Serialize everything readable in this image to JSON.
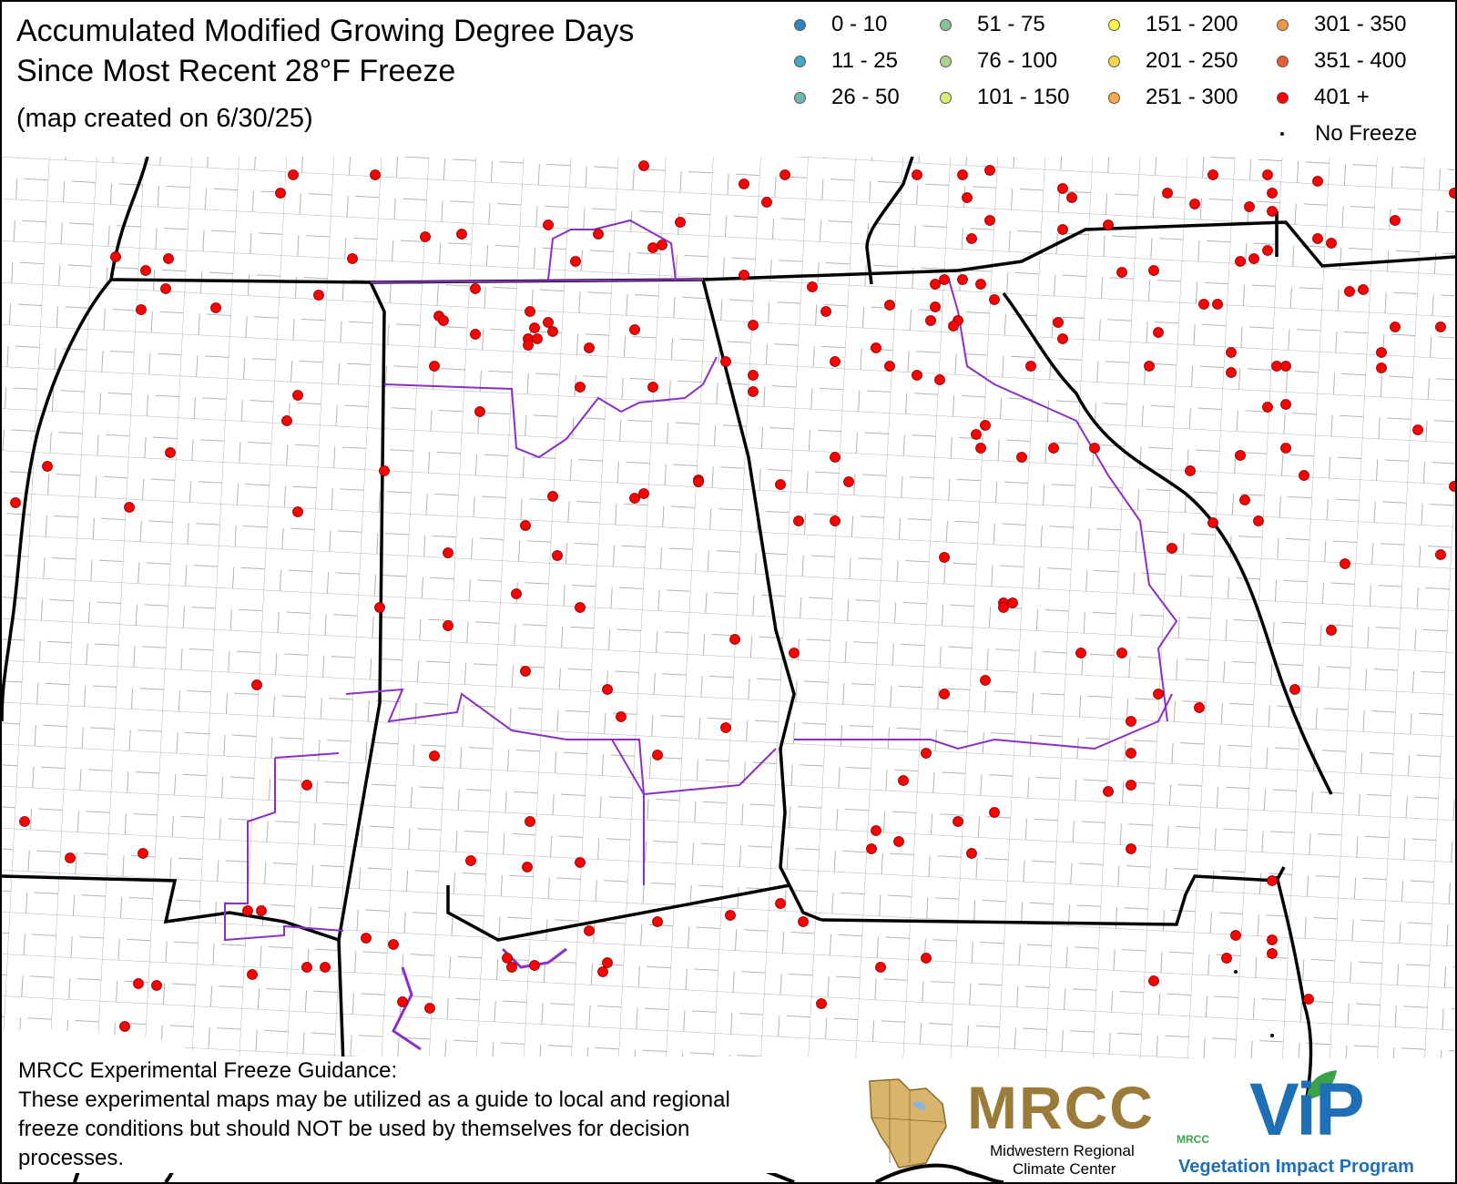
{
  "title_line1": "Accumulated Modified Growing Degree Days",
  "title_line2": "Since Most Recent 28°F Freeze",
  "subtitle": "(map created on 6/30/25)",
  "legend": [
    {
      "label": "0 - 10",
      "color": "#2e86c1"
    },
    {
      "label": "11 - 25",
      "color": "#48a7c6"
    },
    {
      "label": "26 - 50",
      "color": "#6fb7b0"
    },
    {
      "label": "51 - 75",
      "color": "#86c196"
    },
    {
      "label": "76 - 100",
      "color": "#a8d58a"
    },
    {
      "label": "101 - 150",
      "color": "#d6ee74"
    },
    {
      "label": "151 - 200",
      "color": "#fff24a"
    },
    {
      "label": "201 - 250",
      "color": "#fcd44b"
    },
    {
      "label": "251 - 300",
      "color": "#f8a94b"
    },
    {
      "label": "301 - 350",
      "color": "#f39645"
    },
    {
      "label": "351 - 400",
      "color": "#ec5a34"
    },
    {
      "label": "401 +",
      "color": "#ff0000"
    }
  ],
  "legend_no_freeze": "No Freeze",
  "disclaimer_heading": "MRCC Experimental Freeze Guidance:",
  "disclaimer_text": "These experimental maps may be utilized as a guide to local and regional freeze conditions but should NOT be used by themselves for decision processes.",
  "logo_mrcc": {
    "word": "MRCC",
    "line1": "Midwestern Regional",
    "line2": "Climate Center",
    "color": "#9a7b3a"
  },
  "logo_vip": {
    "word": "ViP",
    "small": "MRCC",
    "subtitle": "Vegetation Impact Program",
    "color": "#1e6fb5"
  },
  "stations_class": "401 +",
  "station_color": "#ff0000",
  "no_freeze_color": "#000000"
}
